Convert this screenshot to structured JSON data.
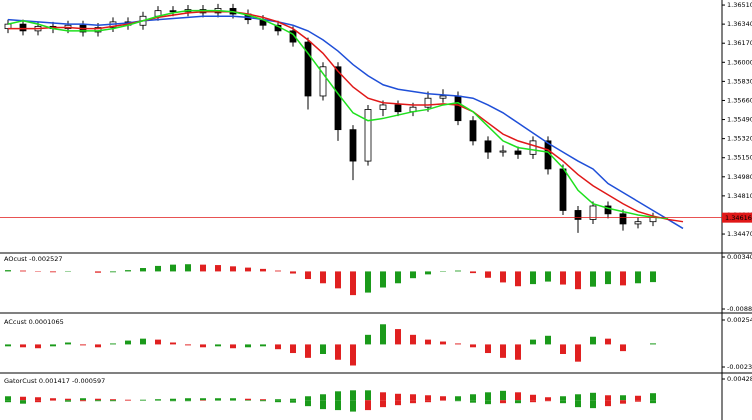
{
  "chart_data": [
    {
      "type": "candlestick",
      "ylim": [
        1.3431,
        1.36555
      ],
      "yticks": [
        {
          "value": 1.3651,
          "label": "1.36510"
        },
        {
          "value": 1.3634,
          "label": "1.36340"
        },
        {
          "value": 1.3617,
          "label": "1.36170"
        },
        {
          "value": 1.36,
          "label": "1.36000"
        },
        {
          "value": 1.3583,
          "label": "1.35830"
        },
        {
          "value": 1.3566,
          "label": "1.35660"
        },
        {
          "value": 1.3549,
          "label": "1.35490"
        },
        {
          "value": 1.3532,
          "label": "1.35320"
        },
        {
          "value": 1.3515,
          "label": "1.35150"
        },
        {
          "value": 1.3498,
          "label": "1.34980"
        },
        {
          "value": 1.3481,
          "label": "1.34810"
        },
        {
          "value": 1.3464,
          "label": "1.34640"
        },
        {
          "value": 1.3447,
          "label": "1.34470"
        }
      ],
      "open": [
        1.363,
        1.3634,
        1.3628,
        1.3632,
        1.363,
        1.3633,
        1.3627,
        1.3631,
        1.3636,
        1.3633,
        1.3641,
        1.3646,
        1.3645,
        1.3647,
        1.3644,
        1.3648,
        1.3643,
        1.3638,
        1.3633,
        1.3628,
        1.3618,
        1.357,
        1.3596,
        1.354,
        1.3512,
        1.3558,
        1.3562,
        1.3556,
        1.356,
        1.3568,
        1.357,
        1.3548,
        1.353,
        1.352,
        1.3521,
        1.3518,
        1.353,
        1.3505,
        1.3468,
        1.346,
        1.3472,
        1.3465,
        1.3456,
        1.3458
      ],
      "high": [
        1.3638,
        1.3638,
        1.3636,
        1.3636,
        1.3637,
        1.3637,
        1.3635,
        1.364,
        1.364,
        1.3645,
        1.365,
        1.365,
        1.3651,
        1.3651,
        1.3652,
        1.3652,
        1.3647,
        1.3642,
        1.3637,
        1.3632,
        1.3622,
        1.36,
        1.36,
        1.3544,
        1.3562,
        1.3566,
        1.3566,
        1.3564,
        1.3574,
        1.3576,
        1.3574,
        1.3552,
        1.3534,
        1.3526,
        1.3525,
        1.3534,
        1.3534,
        1.3509,
        1.3472,
        1.3476,
        1.3476,
        1.3469,
        1.3462,
        1.3466
      ],
      "low": [
        1.3626,
        1.3624,
        1.3624,
        1.3626,
        1.3626,
        1.3623,
        1.3623,
        1.3627,
        1.3629,
        1.3629,
        1.3637,
        1.3641,
        1.3641,
        1.364,
        1.364,
        1.3639,
        1.3634,
        1.3629,
        1.3624,
        1.3614,
        1.3558,
        1.3566,
        1.353,
        1.3495,
        1.3508,
        1.3552,
        1.3552,
        1.3552,
        1.3556,
        1.3564,
        1.3544,
        1.3526,
        1.3514,
        1.3516,
        1.3514,
        1.3514,
        1.35,
        1.3464,
        1.3448,
        1.3456,
        1.3461,
        1.345,
        1.3452,
        1.3454
      ],
      "close": [
        1.3634,
        1.3628,
        1.3632,
        1.363,
        1.3633,
        1.3627,
        1.3631,
        1.3636,
        1.3633,
        1.3641,
        1.3646,
        1.3645,
        1.3647,
        1.3644,
        1.3648,
        1.3643,
        1.3638,
        1.3633,
        1.3628,
        1.3618,
        1.357,
        1.3596,
        1.354,
        1.3512,
        1.3558,
        1.3562,
        1.3556,
        1.356,
        1.3568,
        1.357,
        1.3548,
        1.353,
        1.352,
        1.3521,
        1.3518,
        1.353,
        1.3505,
        1.3468,
        1.346,
        1.3472,
        1.3465,
        1.3456,
        1.3458,
        1.3462
      ],
      "up_color": "#ffffff",
      "down_color": "#000000",
      "series": [
        {
          "color": "#1f4fd8",
          "values": [
            1.3638,
            1.3637,
            1.3636,
            1.3635,
            1.3634,
            1.3634,
            1.3633,
            1.3634,
            1.3635,
            1.3637,
            1.3638,
            1.3639,
            1.364,
            1.3641,
            1.3641,
            1.3641,
            1.364,
            1.3638,
            1.3636,
            1.3633,
            1.3628,
            1.362,
            1.361,
            1.3598,
            1.3588,
            1.358,
            1.3576,
            1.3574,
            1.3572,
            1.3571,
            1.357,
            1.3568,
            1.3562,
            1.3555,
            1.3546,
            1.3537,
            1.3528,
            1.352,
            1.3512,
            1.3505,
            1.3492,
            1.3484,
            1.3476,
            1.3468,
            1.346,
            1.3452
          ]
        },
        {
          "color": "#e01818",
          "values": [
            1.363,
            1.363,
            1.363,
            1.3631,
            1.3631,
            1.363,
            1.363,
            1.3632,
            1.3634,
            1.3637,
            1.364,
            1.3642,
            1.3644,
            1.3645,
            1.3645,
            1.3645,
            1.3643,
            1.364,
            1.3636,
            1.363,
            1.362,
            1.3608,
            1.3592,
            1.3578,
            1.3568,
            1.3564,
            1.3563,
            1.3562,
            1.3562,
            1.3563,
            1.3562,
            1.3556,
            1.3546,
            1.3536,
            1.353,
            1.3526,
            1.3522,
            1.3512,
            1.35,
            1.349,
            1.3482,
            1.3474,
            1.3467,
            1.3463,
            1.346,
            1.3458
          ]
        },
        {
          "color": "#1ee01e",
          "values": [
            1.3634,
            1.3637,
            1.3634,
            1.363,
            1.3628,
            1.3628,
            1.3628,
            1.363,
            1.3633,
            1.3637,
            1.3641,
            1.3644,
            1.3646,
            1.3646,
            1.3646,
            1.3645,
            1.3642,
            1.3638,
            1.3632,
            1.3625,
            1.3608,
            1.359,
            1.3572,
            1.3555,
            1.3548,
            1.355,
            1.3553,
            1.3556,
            1.3558,
            1.3562,
            1.3564,
            1.3556,
            1.3543,
            1.353,
            1.3524,
            1.3522,
            1.352,
            1.3506,
            1.3486,
            1.3474,
            1.347,
            1.3467,
            1.3464,
            1.3462,
            1.3461,
            null
          ]
        }
      ],
      "current_price": 1.34616,
      "current_price_color": "#e01818"
    },
    {
      "type": "bar",
      "label": "AOcust -0.002527",
      "ylim": [
        -0.008877,
        0.003405
      ],
      "yticks": [
        0.003405,
        -0.008877
      ],
      "up_color": "#1a9a1a",
      "down_color": "#e02020",
      "values": [
        0.0003,
        0.0002,
        -0.0001,
        -0.0002,
        0.0001,
        0,
        -0.0003,
        -0.0002,
        0.0003,
        0.0008,
        0.0013,
        0.0016,
        0.0017,
        0.0016,
        0.0015,
        0.0012,
        0.0009,
        0.0006,
        0.0002,
        -0.0005,
        -0.0018,
        -0.0028,
        -0.004,
        -0.0056,
        -0.005,
        -0.0038,
        -0.0028,
        -0.0016,
        -0.0007,
        -0.0001,
        0.0002,
        -0.0004,
        -0.0015,
        -0.0026,
        -0.0035,
        -0.003,
        -0.0024,
        -0.0031,
        -0.0042,
        -0.0036,
        -0.003,
        -0.0033,
        -0.0028,
        -0.002527
      ]
    },
    {
      "type": "bar",
      "label": "ACcust 0.0001065",
      "ylim": [
        -0.0023561,
        0.0025465
      ],
      "yticks": [
        0.0025465,
        -0.0023561
      ],
      "up_color": "#1a9a1a",
      "down_color": "#e02020",
      "values": [
        -0.0002,
        -0.0003,
        -0.0004,
        -0.0002,
        0.0002,
        -0.0001,
        -0.0003,
        0.0001,
        0.0004,
        0.0006,
        0.0005,
        0.0002,
        -0.0001,
        -0.0003,
        -0.0002,
        -0.0004,
        -0.0003,
        -0.0002,
        -0.0005,
        -0.0009,
        -0.0014,
        -0.001,
        -0.0016,
        -0.0022,
        0.001,
        0.0021,
        0.0016,
        0.001,
        0.0005,
        0.0003,
        0.0001,
        -0.0003,
        -0.0009,
        -0.0014,
        -0.0016,
        0.0005,
        0.0009,
        -0.001,
        -0.0018,
        0.0008,
        0.0006,
        -0.0007,
        0,
        0.0001065
      ]
    },
    {
      "type": "gator",
      "label": "GatorCust 0.001417 -0.000597",
      "ylim": [
        -0.004,
        0.004288
      ],
      "yticks": [
        0.004288
      ],
      "up_color": "#1a9a1a",
      "down_color": "#e02020",
      "upper": [
        0.0008,
        0.0007,
        0.0006,
        0.0004,
        0.0003,
        0.0004,
        0.0003,
        0.0002,
        0.0001,
        0.0001,
        0.0002,
        0.0003,
        0.0004,
        0.0004,
        0.0004,
        0.0004,
        0.0003,
        0.0002,
        0.0002,
        0.0003,
        0.0008,
        0.0012,
        0.0018,
        0.002,
        0.002,
        0.0016,
        0.0013,
        0.0012,
        0.001,
        0.0008,
        0.0008,
        0.0012,
        0.0016,
        0.0019,
        0.0016,
        0.0011,
        0.0006,
        0.0008,
        0.0012,
        0.0015,
        0.001,
        0.001,
        0.0009,
        0.001417
      ],
      "lower": [
        -0.0004,
        -0.0007,
        -0.0004,
        -0.0001,
        -0.0003,
        -0.0002,
        -0.0002,
        -0.0002,
        -0.0001,
        -0.0001,
        -0.0001,
        -0.0002,
        -0.0002,
        -0.0001,
        -0.0001,
        -0.0001,
        -0.0001,
        -0.0002,
        -0.0004,
        -0.0005,
        -0.0012,
        -0.0018,
        -0.002,
        -0.0023,
        -0.002,
        -0.0014,
        -0.001,
        -0.0006,
        -0.0004,
        -0.0001,
        -0.0002,
        -0.0005,
        -0.0008,
        -0.0006,
        -0.0006,
        -0.0004,
        -0.0002,
        -0.0006,
        -0.0014,
        -0.0016,
        -0.0012,
        -0.0007,
        -0.0003,
        -0.000597
      ]
    }
  ]
}
